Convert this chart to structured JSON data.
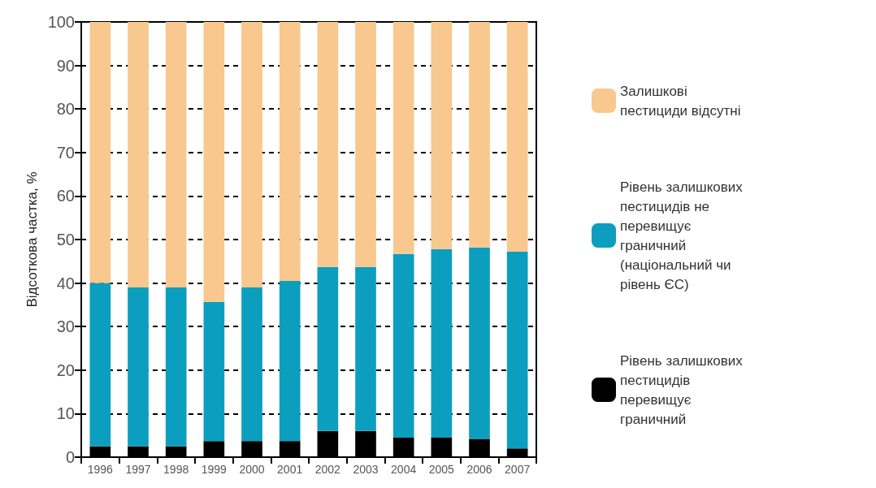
{
  "chart_data": {
    "type": "bar",
    "stacked": true,
    "ylabel": "Відсоткова частка, %",
    "categories": [
      "1996",
      "1997",
      "1998",
      "1999",
      "2000",
      "2001",
      "2002",
      "2003",
      "2004",
      "2005",
      "2006",
      "2007"
    ],
    "series": [
      {
        "name": "Рівень залишкових пестицидів перевищує граничний",
        "color": "#000000",
        "values": [
          2.5,
          2.5,
          2.5,
          3.7,
          3.7,
          3.7,
          6,
          6,
          4.5,
          4.5,
          4.2,
          2
        ]
      },
      {
        "name": "Рівень залишкових пестицидів не перевищує граничний (національний чи рівень ЄС)",
        "color": "#0c9ebf",
        "values": [
          37.5,
          36.5,
          36.5,
          32,
          35.3,
          36.8,
          37.7,
          37.7,
          42.2,
          43.3,
          44,
          45.2
        ]
      },
      {
        "name": "Залишкові пестициди відсутні",
        "color": "#f8c88e",
        "values": [
          60,
          61,
          61,
          64.3,
          61,
          59.5,
          56.3,
          56.3,
          53.3,
          52.2,
          51.8,
          52.8
        ]
      }
    ],
    "ylim": [
      0,
      100
    ],
    "yticks": [
      0,
      10,
      20,
      30,
      40,
      50,
      60,
      70,
      80,
      90,
      100
    ],
    "grid": "y",
    "legend": "right"
  }
}
